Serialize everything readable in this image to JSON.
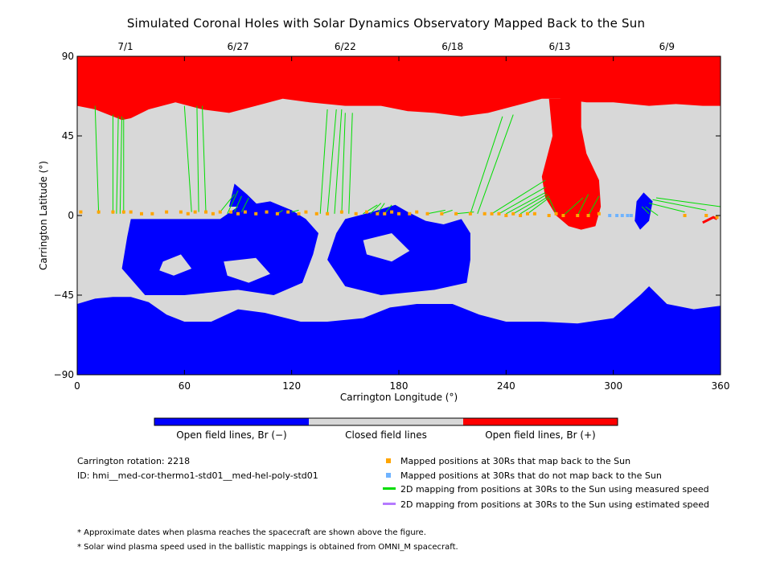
{
  "title": "Simulated Coronal Holes with Solar Dynamics Observatory Mapped Back to the Sun",
  "chart_data": {
    "type": "heatmap",
    "title": "Simulated Coronal Holes with Solar Dynamics Observatory Mapped Back to the Sun",
    "xlabel": "Carrington Longitude (°)",
    "ylabel": "Carrington Latitude (°)",
    "xlim": [
      0,
      360
    ],
    "ylim": [
      -90,
      90
    ],
    "x_ticks": [
      "0",
      "60",
      "120",
      "180",
      "240",
      "300",
      "360"
    ],
    "y_ticks": [
      "90",
      "45",
      "0",
      "-45",
      "-90"
    ],
    "top_axis_dates": [
      {
        "lon": 27,
        "label": "7/1"
      },
      {
        "lon": 90,
        "label": "6/27"
      },
      {
        "lon": 150,
        "label": "6/22"
      },
      {
        "lon": 210,
        "label": "6/18"
      },
      {
        "lon": 270,
        "label": "6/13"
      },
      {
        "lon": 330,
        "label": "6/9"
      }
    ],
    "colorbar": [
      {
        "label": "Open field lines, Br (−)",
        "color": "#0000ff"
      },
      {
        "label": "Closed field lines",
        "color": "#d8d8d8"
      },
      {
        "label": "Open field lines, Br (+)",
        "color": "#ff0000"
      }
    ],
    "regions": {
      "positive_polar_boundary": [
        [
          0,
          62
        ],
        [
          10,
          60
        ],
        [
          20,
          56
        ],
        [
          25,
          54
        ],
        [
          30,
          55
        ],
        [
          40,
          60
        ],
        [
          55,
          64
        ],
        [
          70,
          60
        ],
        [
          85,
          58
        ],
        [
          100,
          62
        ],
        [
          115,
          66
        ],
        [
          130,
          64
        ],
        [
          150,
          62
        ],
        [
          170,
          62
        ],
        [
          185,
          59
        ],
        [
          200,
          58
        ],
        [
          215,
          56
        ],
        [
          230,
          58
        ],
        [
          245,
          62
        ],
        [
          260,
          66
        ],
        [
          270,
          66
        ],
        [
          285,
          64
        ],
        [
          300,
          64
        ],
        [
          320,
          62
        ],
        [
          335,
          63
        ],
        [
          350,
          62
        ],
        [
          360,
          62
        ]
      ],
      "negative_polar_boundary": [
        [
          0,
          -50
        ],
        [
          10,
          -47
        ],
        [
          20,
          -46
        ],
        [
          30,
          -46
        ],
        [
          40,
          -49
        ],
        [
          50,
          -56
        ],
        [
          60,
          -60
        ],
        [
          75,
          -60
        ],
        [
          90,
          -53
        ],
        [
          105,
          -55
        ],
        [
          125,
          -60
        ],
        [
          140,
          -60
        ],
        [
          160,
          -58
        ],
        [
          175,
          -52
        ],
        [
          190,
          -50
        ],
        [
          210,
          -50
        ],
        [
          225,
          -56
        ],
        [
          240,
          -60
        ],
        [
          260,
          -60
        ],
        [
          280,
          -61
        ],
        [
          300,
          -58
        ],
        [
          315,
          -45
        ],
        [
          320,
          -40
        ],
        [
          330,
          -50
        ],
        [
          345,
          -53
        ],
        [
          360,
          -51
        ]
      ],
      "positive_lobe": [
        [
          264,
          66
        ],
        [
          266,
          45
        ],
        [
          260,
          22
        ],
        [
          262,
          10
        ],
        [
          268,
          0
        ],
        [
          275,
          -6
        ],
        [
          282,
          -8
        ],
        [
          290,
          -6
        ],
        [
          293,
          5
        ],
        [
          292,
          20
        ],
        [
          285,
          35
        ],
        [
          282,
          50
        ],
        [
          282,
          66
        ]
      ],
      "negative_lobes": [
        [
          [
            30,
            -2
          ],
          [
            80,
            -2
          ],
          [
            90,
            5
          ],
          [
            108,
            8
          ],
          [
            120,
            3
          ],
          [
            128,
            -2
          ],
          [
            135,
            -10
          ],
          [
            132,
            -22
          ],
          [
            126,
            -38
          ],
          [
            110,
            -45
          ],
          [
            90,
            -42
          ],
          [
            60,
            -45
          ],
          [
            38,
            -45
          ],
          [
            25,
            -30
          ],
          [
            28,
            -12
          ]
        ],
        [
          [
            150,
            -2
          ],
          [
            165,
            2
          ],
          [
            178,
            6
          ],
          [
            185,
            2
          ],
          [
            195,
            -3
          ],
          [
            205,
            -5
          ],
          [
            215,
            -2
          ],
          [
            220,
            -10
          ],
          [
            220,
            -25
          ],
          [
            218,
            -38
          ],
          [
            200,
            -42
          ],
          [
            170,
            -45
          ],
          [
            150,
            -40
          ],
          [
            140,
            -25
          ],
          [
            145,
            -10
          ]
        ],
        [
          [
            85,
            5
          ],
          [
            88,
            18
          ],
          [
            95,
            12
          ],
          [
            102,
            5
          ]
        ],
        [
          [
            313,
            8
          ],
          [
            317,
            13
          ],
          [
            322,
            8
          ],
          [
            320,
            -3
          ],
          [
            315,
            -8
          ],
          [
            312,
            -3
          ]
        ]
      ],
      "negative_lobe_interior_holes": [
        [
          [
            82,
            -26
          ],
          [
            100,
            -24
          ],
          [
            108,
            -33
          ],
          [
            96,
            -38
          ],
          [
            84,
            -34
          ]
        ],
        [
          [
            160,
            -14
          ],
          [
            176,
            -10
          ],
          [
            186,
            -20
          ],
          [
            176,
            -26
          ],
          [
            162,
            -22
          ]
        ],
        [
          [
            48,
            -26
          ],
          [
            58,
            -22
          ],
          [
            64,
            -30
          ],
          [
            54,
            -34
          ],
          [
            46,
            -31
          ]
        ]
      ],
      "positive_small_spots": [
        [
          350,
          -4
        ],
        [
          352,
          -3
        ],
        [
          356,
          -1
        ],
        [
          358,
          -2
        ]
      ]
    },
    "mapped_positions_back_to_sun": {
      "color": "#ffa500",
      "lon": [
        2,
        12,
        20,
        26,
        30,
        36,
        42,
        50,
        58,
        62,
        66,
        72,
        76,
        80,
        86,
        90,
        94,
        100,
        106,
        112,
        118,
        124,
        128,
        134,
        140,
        148,
        156,
        162,
        168,
        172,
        176,
        180,
        186,
        190,
        196,
        204,
        212,
        220,
        228,
        232,
        236,
        240,
        244,
        248,
        252,
        256,
        264,
        268,
        272,
        280,
        286,
        292,
        340,
        352,
        358
      ],
      "lat": [
        2,
        2,
        2,
        2,
        2,
        1,
        1,
        2,
        2,
        1,
        2,
        2,
        1,
        2,
        2,
        1,
        2,
        1,
        2,
        1,
        2,
        1,
        2,
        1,
        1,
        2,
        1,
        2,
        1,
        1,
        2,
        1,
        1,
        2,
        1,
        1,
        1,
        1,
        1,
        1,
        1,
        0,
        1,
        0,
        1,
        1,
        0,
        1,
        0,
        0,
        0,
        1,
        0,
        0,
        -1
      ]
    },
    "mapped_positions_not_back_to_sun": {
      "color": "#6fb3ff",
      "lon": [
        298,
        302,
        305,
        308,
        310
      ],
      "lat": [
        0,
        0,
        0,
        0,
        0
      ]
    },
    "mapping_lines_measured_speed": {
      "color": "#00dd00",
      "segments": [
        [
          [
            12,
            1
          ],
          [
            10,
            62
          ]
        ],
        [
          [
            20,
            1
          ],
          [
            20,
            57
          ]
        ],
        [
          [
            22,
            1
          ],
          [
            23,
            56
          ]
        ],
        [
          [
            24,
            1
          ],
          [
            25,
            56
          ]
        ],
        [
          [
            26,
            1
          ],
          [
            26,
            55
          ]
        ],
        [
          [
            64,
            2
          ],
          [
            60,
            62
          ]
        ],
        [
          [
            68,
            2
          ],
          [
            67,
            62
          ]
        ],
        [
          [
            72,
            2
          ],
          [
            70,
            62
          ]
        ],
        [
          [
            80,
            2
          ],
          [
            88,
            12
          ]
        ],
        [
          [
            84,
            1
          ],
          [
            90,
            14
          ]
        ],
        [
          [
            88,
            2
          ],
          [
            92,
            11
          ]
        ],
        [
          [
            92,
            2
          ],
          [
            96,
            10
          ]
        ],
        [
          [
            112,
            1
          ],
          [
            115,
            3
          ]
        ],
        [
          [
            120,
            2
          ],
          [
            124,
            3
          ]
        ],
        [
          [
            136,
            1
          ],
          [
            140,
            60
          ]
        ],
        [
          [
            140,
            1
          ],
          [
            145,
            60
          ]
        ],
        [
          [
            144,
            1
          ],
          [
            148,
            60
          ]
        ],
        [
          [
            148,
            1
          ],
          [
            150,
            58
          ]
        ],
        [
          [
            152,
            1
          ],
          [
            154,
            58
          ]
        ],
        [
          [
            160,
            1
          ],
          [
            168,
            6
          ]
        ],
        [
          [
            164,
            1
          ],
          [
            170,
            7
          ]
        ],
        [
          [
            168,
            1
          ],
          [
            172,
            7
          ]
        ],
        [
          [
            172,
            1
          ],
          [
            176,
            6
          ]
        ],
        [
          [
            196,
            1
          ],
          [
            206,
            3
          ]
        ],
        [
          [
            204,
            1
          ],
          [
            210,
            3
          ]
        ],
        [
          [
            212,
            1
          ],
          [
            222,
            2
          ]
        ],
        [
          [
            220,
            1
          ],
          [
            238,
            56
          ]
        ],
        [
          [
            224,
            1
          ],
          [
            244,
            57
          ]
        ],
        [
          [
            232,
            1
          ],
          [
            262,
            20
          ]
        ],
        [
          [
            236,
            1
          ],
          [
            262,
            16
          ]
        ],
        [
          [
            240,
            1
          ],
          [
            262,
            13
          ]
        ],
        [
          [
            244,
            1
          ],
          [
            263,
            12
          ]
        ],
        [
          [
            248,
            1
          ],
          [
            264,
            11
          ]
        ],
        [
          [
            252,
            1
          ],
          [
            264,
            10
          ]
        ],
        [
          [
            268,
            1
          ],
          [
            264,
            10
          ]
        ],
        [
          [
            272,
            0
          ],
          [
            283,
            10
          ]
        ],
        [
          [
            280,
            0
          ],
          [
            286,
            12
          ]
        ],
        [
          [
            286,
            0
          ],
          [
            292,
            11
          ]
        ],
        [
          [
            316,
            5
          ],
          [
            320,
            1
          ]
        ],
        [
          [
            318,
            5
          ],
          [
            325,
            0
          ]
        ],
        [
          [
            320,
            7
          ],
          [
            340,
            2
          ]
        ],
        [
          [
            322,
            9
          ],
          [
            352,
            3
          ]
        ],
        [
          [
            324,
            10
          ],
          [
            360,
            5
          ]
        ]
      ]
    },
    "legend": [
      {
        "marker": "square",
        "color": "#ffa500",
        "label": "Mapped positions at 30Rs that map back to the Sun"
      },
      {
        "marker": "square",
        "color": "#6fb3ff",
        "label": "Mapped positions at 30Rs that do not map back to the Sun"
      },
      {
        "marker": "line",
        "color": "#00dd00",
        "label": "2D mapping from positions at 30Rs to the Sun using measured speed"
      },
      {
        "marker": "line",
        "color": "#b57aff",
        "label": "2D mapping from positions at 30Rs to the Sun using estimated speed"
      }
    ]
  },
  "info": {
    "rotation": "Carrington rotation: 2218",
    "id": "ID: hmi__med-cor-thermo1-std01__med-hel-poly-std01"
  },
  "notes": [
    "* Approximate dates when plasma reaches the spacecraft are shown above the figure.",
    "* Solar wind plasma speed used in the ballistic mappings is obtained from OMNI_M spacecraft."
  ]
}
